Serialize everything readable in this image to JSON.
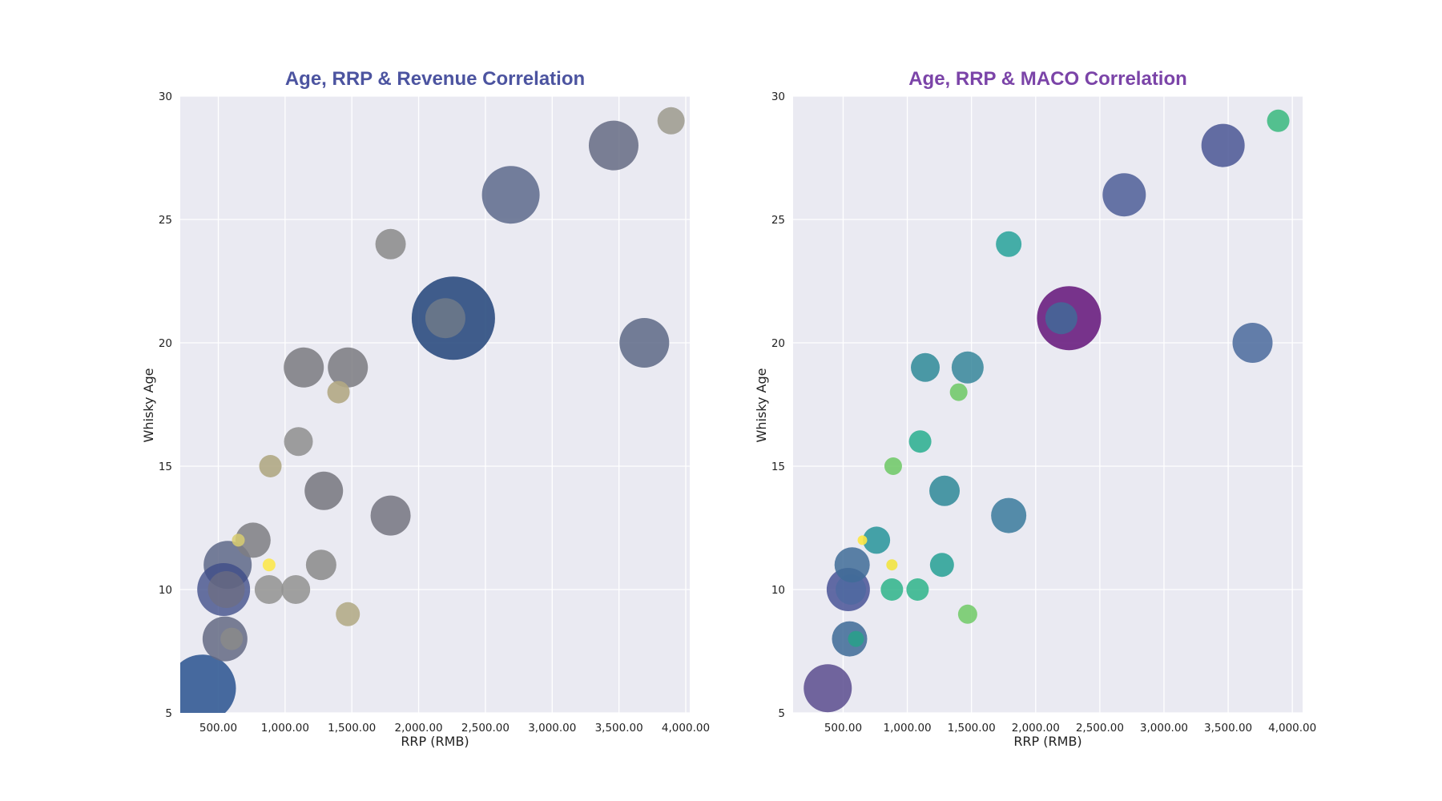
{
  "figure": {
    "background": "#ffffff",
    "axes_facecolor": "#eaeaf2",
    "grid_color": "#ffffff"
  },
  "chart_data": [
    {
      "type": "scatter",
      "title": "Age, RRP & Revenue Correlation",
      "title_color": "#4c54a0",
      "xlabel": "RRP (RMB)",
      "ylabel": "Whisky Age",
      "xlim": [
        215,
        4030
      ],
      "ylim": [
        5,
        30
      ],
      "xticks": [
        500,
        1000,
        1500,
        2000,
        2500,
        3000,
        3500,
        4000
      ],
      "xtick_labels": [
        "500.00",
        "1,000.00",
        "1,500.00",
        "2,000.00",
        "2,500.00",
        "3,000.00",
        "3,500.00",
        "4,000.00"
      ],
      "yticks": [
        5,
        10,
        15,
        20,
        25,
        30
      ],
      "ytick_labels": [
        "5",
        "10",
        "15",
        "20",
        "25",
        "30"
      ],
      "grid": true,
      "size_encodes": "Revenue",
      "points": [
        {
          "x": 2260,
          "y": 21,
          "r": 52,
          "color": "#2c4c80",
          "alpha": 0.9
        },
        {
          "x": 380,
          "y": 6,
          "r": 42,
          "color": "#2f5792",
          "alpha": 0.88
        },
        {
          "x": 2690,
          "y": 26,
          "r": 36,
          "color": "#5d6a8c",
          "alpha": 0.85
        },
        {
          "x": 3690,
          "y": 20,
          "r": 31,
          "color": "#5d6886",
          "alpha": 0.85
        },
        {
          "x": 3460,
          "y": 28,
          "r": 31,
          "color": "#656b84",
          "alpha": 0.85
        },
        {
          "x": 570,
          "y": 11,
          "r": 30,
          "color": "#5e6888",
          "alpha": 0.85
        },
        {
          "x": 540,
          "y": 10,
          "r": 33,
          "color": "#3d4c88",
          "alpha": 0.78
        },
        {
          "x": 550,
          "y": 8,
          "r": 28,
          "color": "#646a84",
          "alpha": 0.85
        },
        {
          "x": 1790,
          "y": 13,
          "r": 25,
          "color": "#747480",
          "alpha": 0.85
        },
        {
          "x": 1470,
          "y": 19,
          "r": 25,
          "color": "#7a7a80",
          "alpha": 0.85
        },
        {
          "x": 1140,
          "y": 19,
          "r": 25,
          "color": "#7a7a80",
          "alpha": 0.85
        },
        {
          "x": 1290,
          "y": 14,
          "r": 24,
          "color": "#76767e",
          "alpha": 0.85
        },
        {
          "x": 760,
          "y": 12,
          "r": 22,
          "color": "#7e7e82",
          "alpha": 0.85
        },
        {
          "x": 2200,
          "y": 21,
          "r": 25,
          "color": "#888a88",
          "alpha": 0.55
        },
        {
          "x": 560,
          "y": 10,
          "r": 23,
          "color": "#6e6e80",
          "alpha": 0.7
        },
        {
          "x": 1790,
          "y": 24,
          "r": 19,
          "color": "#8a8a8a",
          "alpha": 0.85
        },
        {
          "x": 1270,
          "y": 11,
          "r": 19,
          "color": "#8a8a8a",
          "alpha": 0.85
        },
        {
          "x": 1100,
          "y": 16,
          "r": 18,
          "color": "#8e8e8e",
          "alpha": 0.85
        },
        {
          "x": 880,
          "y": 10,
          "r": 18,
          "color": "#929290",
          "alpha": 0.85
        },
        {
          "x": 1080,
          "y": 10,
          "r": 18,
          "color": "#929290",
          "alpha": 0.85
        },
        {
          "x": 3890,
          "y": 29,
          "r": 17,
          "color": "#a19e92",
          "alpha": 0.9
        },
        {
          "x": 600,
          "y": 8,
          "r": 14,
          "color": "#8a8a8a",
          "alpha": 0.85
        },
        {
          "x": 1400,
          "y": 18,
          "r": 14,
          "color": "#b2a884",
          "alpha": 0.9
        },
        {
          "x": 890,
          "y": 15,
          "r": 14,
          "color": "#b0a884",
          "alpha": 0.9
        },
        {
          "x": 1470,
          "y": 9,
          "r": 15,
          "color": "#b4ac88",
          "alpha": 0.9
        },
        {
          "x": 650,
          "y": 12,
          "r": 8,
          "color": "#d8cd70",
          "alpha": 0.85
        },
        {
          "x": 880,
          "y": 11,
          "r": 8,
          "color": "#fde744",
          "alpha": 0.85
        }
      ]
    },
    {
      "type": "scatter",
      "title": "Age, RRP & MACO Correlation",
      "title_color": "#7b44a8",
      "xlabel": "RRP (RMB)",
      "ylabel": "Whisky Age",
      "xlim": [
        110,
        4080
      ],
      "ylim": [
        5,
        30
      ],
      "xticks": [
        500,
        1000,
        1500,
        2000,
        2500,
        3000,
        3500,
        4000
      ],
      "xtick_labels": [
        "500.00",
        "1,000.00",
        "1,500.00",
        "2,000.00",
        "2,500.00",
        "3,000.00",
        "3,500.00",
        "4,000.00"
      ],
      "yticks": [
        5,
        10,
        15,
        20,
        25,
        30
      ],
      "ytick_labels": [
        "5",
        "10",
        "15",
        "20",
        "25",
        "30"
      ],
      "grid": true,
      "size_encodes": "MACO",
      "points": [
        {
          "x": 2260,
          "y": 21,
          "r": 40,
          "color": "#6a1f80",
          "alpha": 0.9
        },
        {
          "x": 380,
          "y": 6,
          "r": 30,
          "color": "#5a4c8e",
          "alpha": 0.85
        },
        {
          "x": 3460,
          "y": 28,
          "r": 27,
          "color": "#4a5694",
          "alpha": 0.85
        },
        {
          "x": 2690,
          "y": 26,
          "r": 27,
          "color": "#4e5e98",
          "alpha": 0.85
        },
        {
          "x": 3690,
          "y": 20,
          "r": 25,
          "color": "#4a6a9c",
          "alpha": 0.85
        },
        {
          "x": 540,
          "y": 10,
          "r": 27,
          "color": "#3e4a90",
          "alpha": 0.8
        },
        {
          "x": 560,
          "y": 10,
          "r": 19,
          "color": "#4a6aa0",
          "alpha": 0.7
        },
        {
          "x": 570,
          "y": 11,
          "r": 22,
          "color": "#3f6c98",
          "alpha": 0.85
        },
        {
          "x": 550,
          "y": 8,
          "r": 22,
          "color": "#3d6a96",
          "alpha": 0.85
        },
        {
          "x": 1790,
          "y": 13,
          "r": 22,
          "color": "#3a7a9c",
          "alpha": 0.85
        },
        {
          "x": 1470,
          "y": 19,
          "r": 20,
          "color": "#36869a",
          "alpha": 0.85
        },
        {
          "x": 2200,
          "y": 21,
          "r": 20,
          "color": "#3a729a",
          "alpha": 0.75
        },
        {
          "x": 1290,
          "y": 14,
          "r": 19,
          "color": "#2e8898",
          "alpha": 0.85
        },
        {
          "x": 1140,
          "y": 19,
          "r": 18,
          "color": "#2e8a98",
          "alpha": 0.85
        },
        {
          "x": 760,
          "y": 12,
          "r": 17,
          "color": "#27949a",
          "alpha": 0.85
        },
        {
          "x": 1270,
          "y": 11,
          "r": 15,
          "color": "#24a094",
          "alpha": 0.85
        },
        {
          "x": 1790,
          "y": 24,
          "r": 16,
          "color": "#27a29a",
          "alpha": 0.85
        },
        {
          "x": 1100,
          "y": 16,
          "r": 14,
          "color": "#28ae8e",
          "alpha": 0.85
        },
        {
          "x": 880,
          "y": 10,
          "r": 14,
          "color": "#2eb48a",
          "alpha": 0.85
        },
        {
          "x": 1080,
          "y": 10,
          "r": 14,
          "color": "#2eb48a",
          "alpha": 0.85
        },
        {
          "x": 3890,
          "y": 29,
          "r": 14,
          "color": "#38b87e",
          "alpha": 0.85
        },
        {
          "x": 600,
          "y": 8,
          "r": 10,
          "color": "#27a08a",
          "alpha": 0.85
        },
        {
          "x": 1400,
          "y": 18,
          "r": 11,
          "color": "#6cc864",
          "alpha": 0.85
        },
        {
          "x": 890,
          "y": 15,
          "r": 11,
          "color": "#6cc864",
          "alpha": 0.85
        },
        {
          "x": 1470,
          "y": 9,
          "r": 12,
          "color": "#70ca66",
          "alpha": 0.85
        },
        {
          "x": 650,
          "y": 12,
          "r": 6,
          "color": "#fde744",
          "alpha": 0.9
        },
        {
          "x": 880,
          "y": 11,
          "r": 7,
          "color": "#f2e440",
          "alpha": 0.9
        }
      ]
    }
  ]
}
